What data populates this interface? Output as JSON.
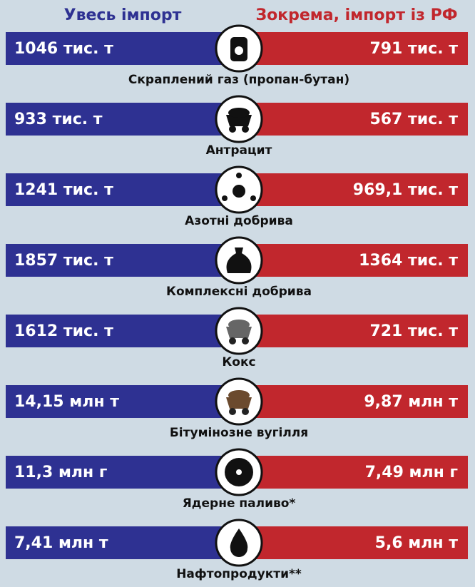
{
  "header": {
    "left": "Увесь імпорт",
    "right": "Зокрема, імпорт із РФ"
  },
  "items": [
    {
      "left": "1046 тис. т",
      "right": "791 тис. т",
      "label": "Скраплений газ (пропан-бутан)"
    },
    {
      "left": "933 тис. т",
      "right": "567 тис. т",
      "label": "Антрацит"
    },
    {
      "left": "1241 тис. т",
      "right": "969,1 тис. т",
      "label": "Азотні добрива"
    },
    {
      "left": "1857 тис. т",
      "right": "1364 тис. т",
      "label": "Комплексні добрива"
    },
    {
      "left": "1612 тис. т",
      "right": "721 тис. т",
      "label": "Кокс"
    },
    {
      "left": "14,15 млн т",
      "right": "9,87 млн т",
      "label": "Бітумінозне вугілля"
    },
    {
      "left": "11,3 млн г",
      "right": "7,49 млн г",
      "label": "Ядерне паливо*"
    },
    {
      "left": "7,41 млн т",
      "right": "5,6 млн т",
      "label": "Нафтопродукти**"
    }
  ]
}
